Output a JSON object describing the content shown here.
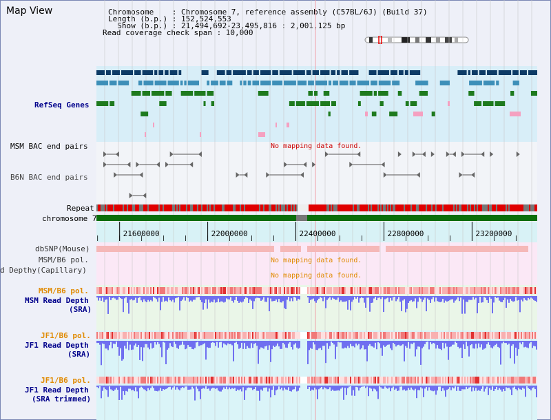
{
  "view_title": "Map View",
  "header": {
    "line1": "Chromosome    : Chromosome 7, reference assembly (C57BL/6J) (Build 37)",
    "line2": "Length (b.p.) : 152,524,553",
    "line3": "  Show (b.p.) : 21,494,692-23,495,816 : 2,001,125 bp",
    "line4": "Read coverage check span : 10,000"
  },
  "tracks": {
    "refseq": "RefSeq Genes",
    "msm_bac": "MSM BAC end pairs",
    "b6n_bac": "B6N BAC end pairs",
    "repeat": "Repeat",
    "chromosome": "chromosome 7",
    "dbsnp": "dbSNP(Mouse)",
    "msm_b6_pol_cap": "MSM/B6 pol.",
    "read_depth_cap": "d Depthy(Capillary)",
    "msm_b6_pol": "MSM/B6 pol.",
    "msm_read_depth_1": "MSM Read Depth",
    "msm_read_depth_2": "(SRA)",
    "jf1_b6_pol": "JF1/B6 pol.",
    "jf1_read_depth_1": "JF1 Read Depth",
    "jf1_read_depth_2": "(SRA)",
    "jf1_b6_pol_2": "JF1/B6 pol.",
    "jf1_trim_1": "JF1 Read Depth",
    "jf1_trim_2": "(SRA trimmed)"
  },
  "no_mapping": "No mapping data found.",
  "axis": {
    "ticks": [
      {
        "value": 21600000,
        "label": "21600000"
      },
      {
        "value": 22000000,
        "label": "22000000"
      },
      {
        "value": 22400000,
        "label": "22400000"
      },
      {
        "value": 22800000,
        "label": "22800000"
      },
      {
        "value": 23200000,
        "label": "23200000"
      }
    ],
    "start": 21494692,
    "end": 23495816
  },
  "colors": {
    "label_blue": "#00008b",
    "label_orange": "#e08a00",
    "no_map_red": "#cc0000",
    "no_map_orange": "#e08a00",
    "gene_navy": "#0d3b66",
    "gene_teal": "#3d8fb8",
    "gene_green": "#1e7a1e",
    "chrom_green": "#0a6e0a",
    "repeat_red": "#e00000",
    "depth_blue": "#6f6ff0",
    "pink": "#f5a0c0"
  }
}
